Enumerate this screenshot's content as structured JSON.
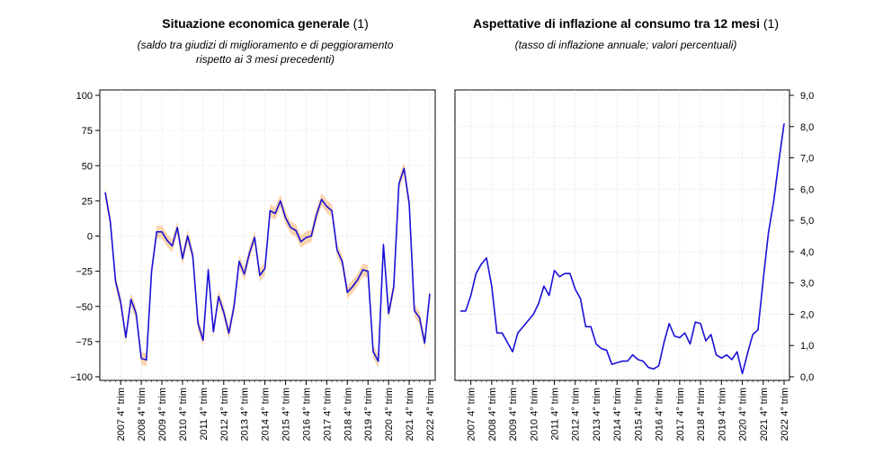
{
  "chart_data": [
    {
      "type": "line",
      "title": "Situazione economica generale",
      "title_note": "(1)",
      "subtitle_line1": "(saldo tra giudizi di miglioramento e di peggioramento",
      "subtitle_line2": "rispetto ai 3 mesi precedenti)",
      "ylim": [
        -100,
        100
      ],
      "yticks": [
        "100",
        "75",
        "50",
        "25",
        "0",
        "−25",
        "−50",
        "−75",
        "−100"
      ],
      "ytick_values": [
        100,
        75,
        50,
        25,
        0,
        -25,
        -50,
        -75,
        -100
      ],
      "x_labels": [
        "2007 4° trim",
        "2008 4° trim",
        "2009 4° trim",
        "2010 4° trim",
        "2011 4° trim",
        "2012 4° trim",
        "2013 4° trim",
        "2014 4° trim",
        "2015 4° trim",
        "2016 4° trim",
        "2017 4° trim",
        "2018 4° trim",
        "2019 4° trim",
        "2020 4° trim",
        "2021 4° trim",
        "2022 4° trim"
      ],
      "grid": true,
      "series": [
        {
          "color": "#1a10d8",
          "band_color": "#f7cfa6",
          "values": [
            31,
            10,
            -32,
            -47,
            -72,
            -45,
            -55,
            -87,
            -88,
            -25,
            3,
            3,
            -3,
            -7,
            6,
            -16,
            0,
            -14,
            -62,
            -74,
            -24,
            -68,
            -43,
            -54,
            -69,
            -50,
            -18,
            -27,
            -12,
            -1,
            -28,
            -23,
            18,
            16,
            25,
            13,
            6,
            4,
            -4,
            -1,
            0,
            15,
            26,
            21,
            18,
            -10,
            -18,
            -40,
            -36,
            -31,
            -24,
            -25,
            -82,
            -89,
            -6,
            -55,
            -36,
            37,
            48,
            23,
            -53,
            -58,
            -76,
            -41
          ]
        }
      ]
    },
    {
      "type": "line",
      "title": "Aspettative di inflazione al consumo tra 12 mesi",
      "title_note": "(1)",
      "subtitle": "(tasso di inflazione annuale; valori percentuali)",
      "ylim": [
        0,
        9
      ],
      "yticks": [
        "9,0",
        "8,0",
        "7,0",
        "6,0",
        "5,0",
        "4,0",
        "3,0",
        "2,0",
        "1,0",
        "0,0"
      ],
      "ytick_values": [
        9,
        8,
        7,
        6,
        5,
        4,
        3,
        2,
        1,
        0
      ],
      "x_labels": [
        "2007 4° trim",
        "2008 4° trim",
        "2009 4° trim",
        "2010 4° trim",
        "2011 4° trim",
        "2012 4° trim",
        "2013 4° trim",
        "2014 4° trim",
        "2015 4° trim",
        "2016 4° trim",
        "2017 4° trim",
        "2018 4° trim",
        "2019 4° trim",
        "2020 4° trim",
        "2021 4° trim",
        "2022 4° trim"
      ],
      "grid": true,
      "series": [
        {
          "color": "#1a10d8",
          "values": [
            2.1,
            2.1,
            2.6,
            3.3,
            3.6,
            3.8,
            2.9,
            1.4,
            1.4,
            1.1,
            0.8,
            1.4,
            1.6,
            1.8,
            2.0,
            2.35,
            2.9,
            2.6,
            3.4,
            3.2,
            3.3,
            3.3,
            2.8,
            2.5,
            1.6,
            1.6,
            1.05,
            0.9,
            0.85,
            0.4,
            0.45,
            0.5,
            0.5,
            0.7,
            0.55,
            0.5,
            0.3,
            0.25,
            0.35,
            1.1,
            1.7,
            1.3,
            1.25,
            1.4,
            1.05,
            1.75,
            1.7,
            1.15,
            1.35,
            0.7,
            0.6,
            0.7,
            0.55,
            0.8,
            0.1,
            0.75,
            1.35,
            1.5,
            3.1,
            4.6,
            5.6,
            6.9,
            8.1
          ]
        }
      ]
    }
  ]
}
